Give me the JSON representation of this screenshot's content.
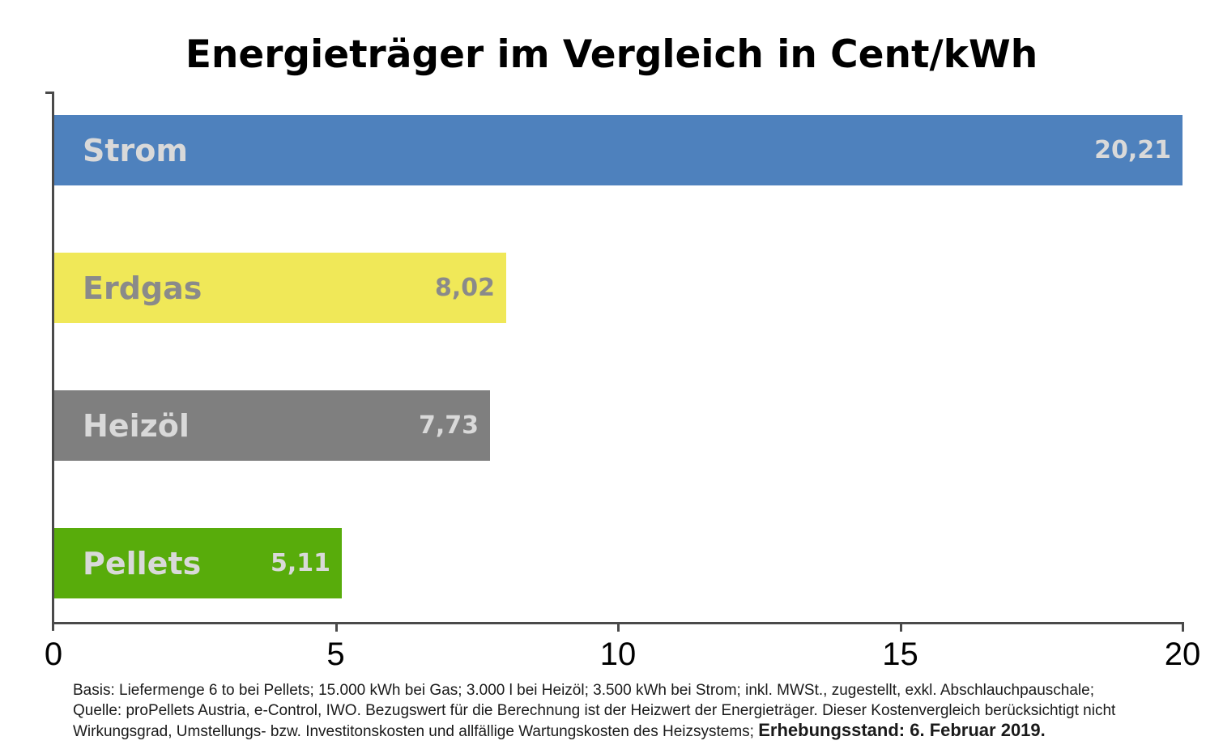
{
  "chart_data": {
    "type": "bar",
    "orientation": "horizontal",
    "title": "Energieträger im Vergleich in Cent/kWh",
    "categories": [
      "Strom",
      "Erdgas",
      "Heizöl",
      "Pellets"
    ],
    "values": [
      20.21,
      8.02,
      7.73,
      5.11
    ],
    "value_labels": [
      "20,21",
      "8,02",
      "7,73",
      "5,11"
    ],
    "bar_colors": [
      "#4E81BD",
      "#F0E858",
      "#7F7F7F",
      "#58AC0B"
    ],
    "text_colors": [
      "#D9D9D9",
      "#8A8A8A",
      "#D9D9D9",
      "#D9D9D9"
    ],
    "xlabel": "",
    "ylabel": "",
    "xlim": [
      0,
      20
    ],
    "x_ticks": [
      0,
      5,
      10,
      15,
      20
    ],
    "x_tick_labels": [
      "0",
      "5",
      "10",
      "15",
      "20"
    ],
    "grid": false,
    "legend": "none",
    "unit": "Cent/kWh"
  },
  "footnote": {
    "line1": "Basis: Liefermenge 6 to bei Pellets; 15.000 kWh bei Gas; 3.000 l bei Heizöl; 3.500 kWh bei Strom; inkl. MWSt., zugestellt, exkl. Abschlauchpauschale;",
    "line2": "Quelle: proPellets Austria, e-Control, IWO. Bezugswert für die Berechnung ist der Heizwert der Energieträger. Dieser Kostenvergleich berücksichtigt nicht",
    "line3_regular": "Wirkungsgrad, Umstellungs- bzw. Investitonskosten und allfällige Wartungskosten des Heizsystems; ",
    "line3_bold": "Erhebungsstand: 6. Februar 2019."
  }
}
